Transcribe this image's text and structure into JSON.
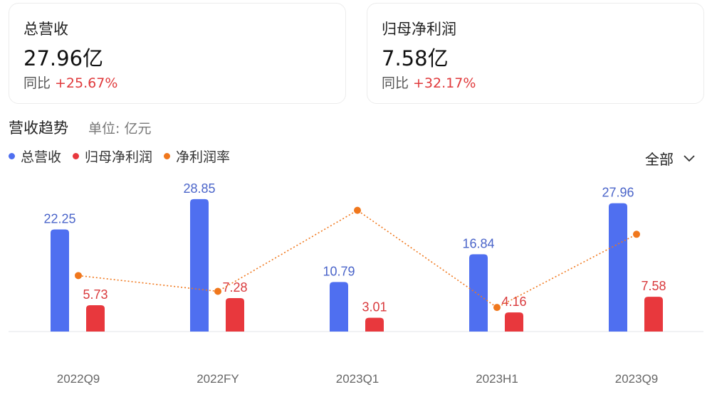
{
  "cards": [
    {
      "title": "总营收",
      "value": "27.96亿",
      "yoy_label": "同比",
      "yoy_value": "+25.67%"
    },
    {
      "title": "归母净利润",
      "value": "7.58亿",
      "yoy_label": "同比",
      "yoy_value": "+32.17%"
    }
  ],
  "section": {
    "title": "营收趋势",
    "unit": "单位: 亿元"
  },
  "legend": [
    {
      "label": "总营收",
      "color": "#4f6ff0"
    },
    {
      "label": "归母净利润",
      "color": "#e8383d"
    },
    {
      "label": "净利润率",
      "color": "#f0771c"
    }
  ],
  "filter": {
    "label": "全部",
    "icon": "chevron-down-icon"
  },
  "chart_data": {
    "type": "bar",
    "categories": [
      "2022Q9",
      "2022FY",
      "2023Q1",
      "2023H1",
      "2023Q9"
    ],
    "series": [
      {
        "name": "总营收",
        "values": [
          22.25,
          28.85,
          10.79,
          16.84,
          27.96
        ],
        "color": "#4f6ff0"
      },
      {
        "name": "归母净利润",
        "values": [
          5.73,
          7.28,
          3.01,
          4.16,
          7.58
        ],
        "color": "#e8383d"
      },
      {
        "name": "净利润率",
        "type": "line",
        "values": [
          25.75,
          25.23,
          27.9,
          24.7,
          27.11
        ],
        "color": "#f0771c"
      }
    ],
    "ylim": [
      0,
      30
    ],
    "grid": false,
    "legend_position": "top-left"
  }
}
